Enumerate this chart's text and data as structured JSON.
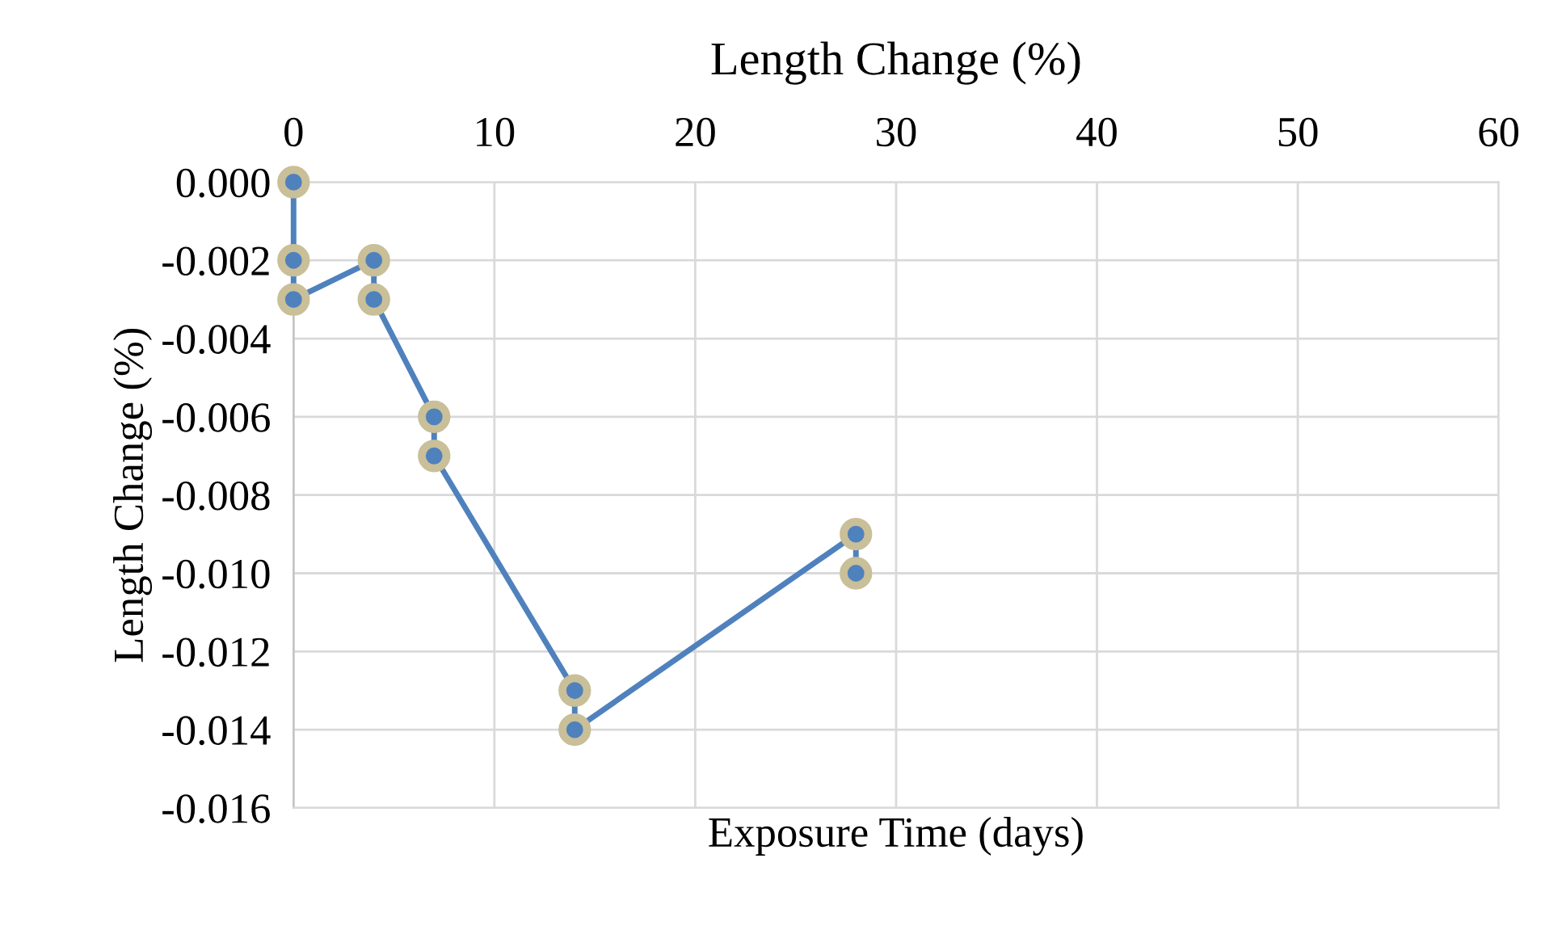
{
  "chart_data": {
    "type": "line",
    "title": "Length Change (%)",
    "xlabel": "Exposure Time (days)",
    "ylabel": "Length Change (%)",
    "x": [
      0,
      0,
      0,
      4,
      4,
      7,
      7,
      14,
      14,
      28,
      28
    ],
    "series": [
      {
        "color": "#4f81bd",
        "values": [
          0.0,
          -0.002,
          -0.003,
          -0.002,
          -0.003,
          -0.006,
          -0.007,
          -0.013,
          -0.014,
          -0.009,
          -0.01
        ]
      }
    ],
    "xlim": [
      0,
      60
    ],
    "xticks": [
      0,
      10,
      20,
      30,
      40,
      50,
      60
    ],
    "ylim": [
      -0.016,
      0.0
    ],
    "yticks": [
      {
        "value": -0.016,
        "label": "-0.016"
      },
      {
        "value": -0.014,
        "label": "-0.014"
      },
      {
        "value": -0.012,
        "label": "-0.012"
      },
      {
        "value": -0.01,
        "label": "-0.010"
      },
      {
        "value": -0.008,
        "label": "-0.008"
      },
      {
        "value": -0.006,
        "label": "-0.006"
      },
      {
        "value": -0.004,
        "label": "-0.004"
      },
      {
        "value": -0.002,
        "label": "-0.002"
      },
      {
        "value": 0.0,
        "label": "0.000"
      }
    ],
    "grid": true,
    "marker": "circle",
    "line_style": "solid",
    "legend": false
  }
}
